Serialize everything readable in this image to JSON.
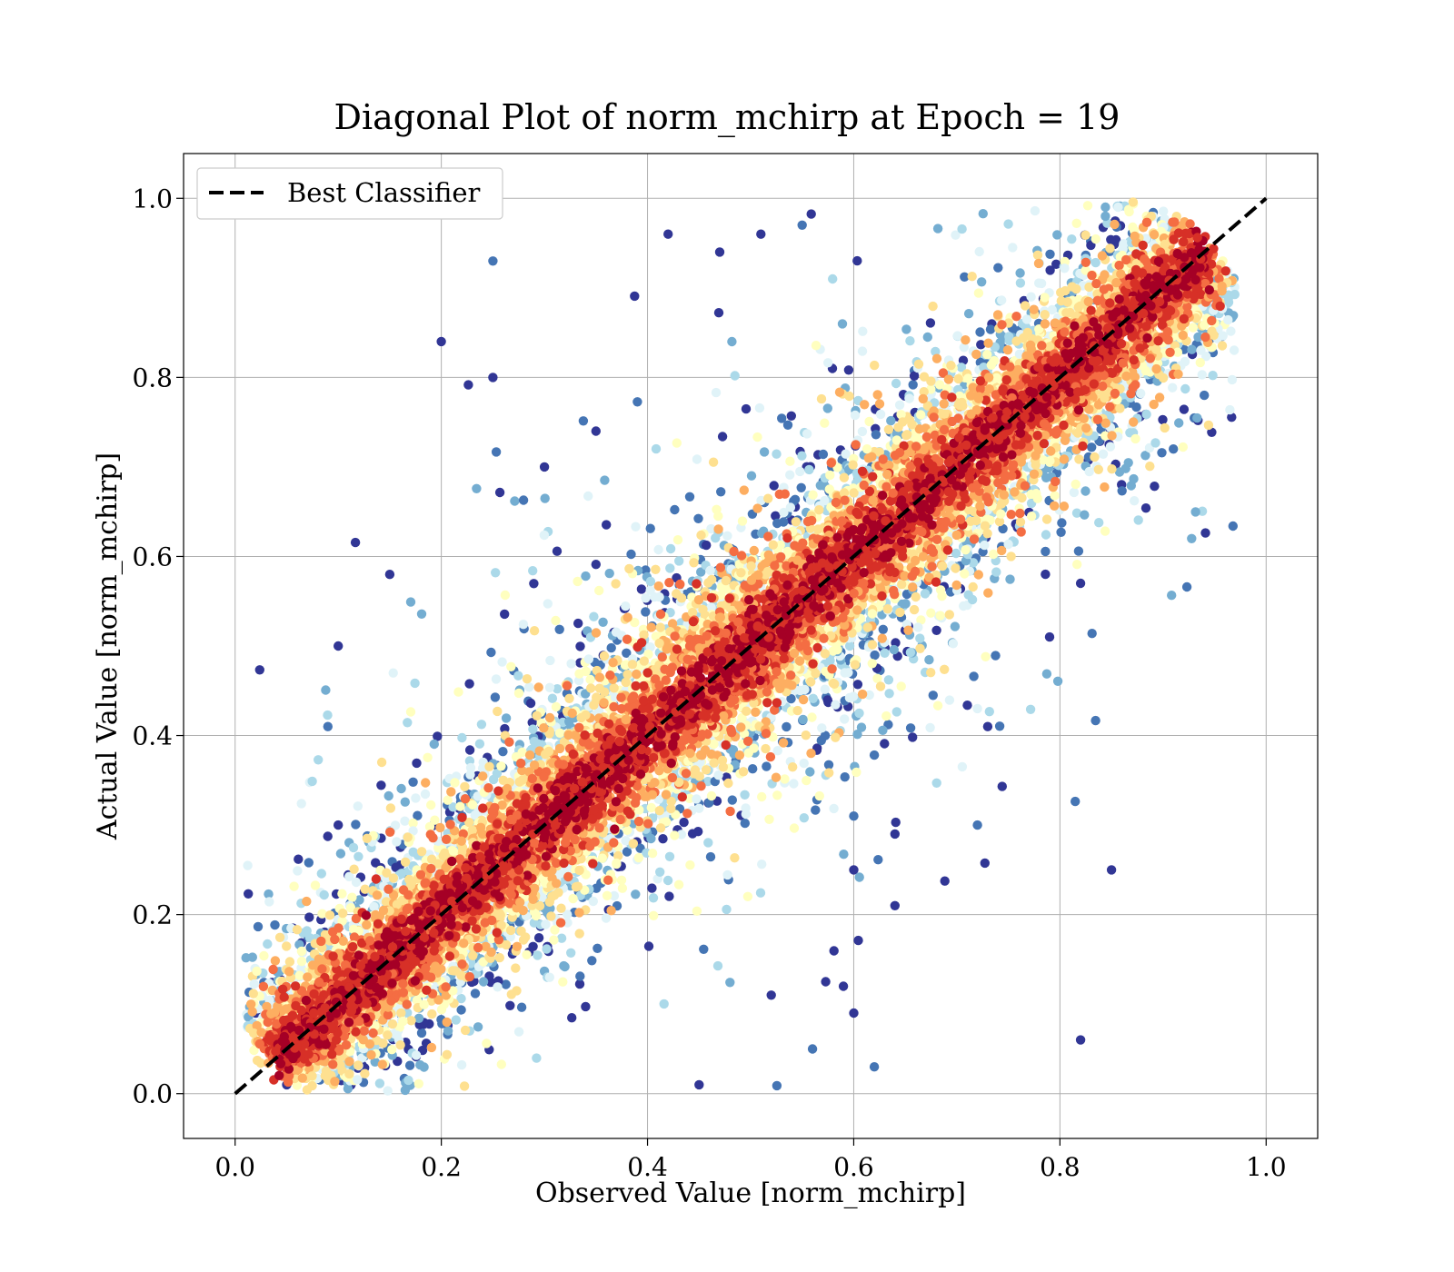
{
  "chart_data": {
    "type": "scatter",
    "title": "Diagonal Plot of norm_mchirp at Epoch = 19",
    "xlabel": "Observed Value [norm_mchirp]",
    "ylabel": "Actual Value [norm_mchirp]",
    "xlim": [
      -0.05,
      1.05
    ],
    "ylim": [
      -0.05,
      1.05
    ],
    "xticks": [
      "0.0",
      "0.2",
      "0.4",
      "0.6",
      "0.8",
      "1.0"
    ],
    "yticks": [
      "0.0",
      "0.2",
      "0.4",
      "0.6",
      "0.8",
      "1.0"
    ],
    "xtick_values": [
      0.0,
      0.2,
      0.4,
      0.6,
      0.8,
      1.0
    ],
    "ytick_values": [
      0.0,
      0.2,
      0.4,
      0.6,
      0.8,
      1.0
    ],
    "grid": true,
    "legend": {
      "placement": "top-left",
      "entries": [
        "Best Classifier"
      ]
    },
    "reference_line": {
      "name": "Best Classifier",
      "x": [
        0.0,
        1.0
      ],
      "y": [
        0.0,
        1.0
      ],
      "style": "dashed",
      "color": "#000000"
    },
    "colormap": "RdYlBu_r (density: dark blue = sparse, dark red = dense)",
    "colors": [
      "#313695",
      "#4575b4",
      "#74add1",
      "#abd9e9",
      "#e0f3f8",
      "#ffffbf",
      "#fee090",
      "#fdae61",
      "#f46d43",
      "#d73027",
      "#a50026"
    ],
    "points_approx_count": 12000,
    "points_sample": [
      {
        "x": 0.02,
        "y": 0.07
      },
      {
        "x": 0.02,
        "y": 0.09
      },
      {
        "x": 0.05,
        "y": 0.01
      },
      {
        "x": 0.1,
        "y": 0.5
      },
      {
        "x": 0.09,
        "y": 0.41
      },
      {
        "x": 0.1,
        "y": 0.3
      },
      {
        "x": 0.15,
        "y": 0.58
      },
      {
        "x": 0.2,
        "y": 0.84
      },
      {
        "x": 0.25,
        "y": 0.93
      },
      {
        "x": 0.25,
        "y": 0.8
      },
      {
        "x": 0.42,
        "y": 0.96
      },
      {
        "x": 0.47,
        "y": 0.94
      },
      {
        "x": 0.51,
        "y": 0.96
      },
      {
        "x": 0.55,
        "y": 0.97
      },
      {
        "x": 0.3,
        "y": 0.7
      },
      {
        "x": 0.35,
        "y": 0.74
      },
      {
        "x": 0.6,
        "y": 0.31
      },
      {
        "x": 0.6,
        "y": 0.25
      },
      {
        "x": 0.64,
        "y": 0.29
      },
      {
        "x": 0.64,
        "y": 0.21
      },
      {
        "x": 0.72,
        "y": 0.3
      },
      {
        "x": 0.73,
        "y": 0.41
      },
      {
        "x": 0.79,
        "y": 0.51
      },
      {
        "x": 0.82,
        "y": 0.06
      },
      {
        "x": 0.82,
        "y": 0.57
      },
      {
        "x": 0.85,
        "y": 0.25
      },
      {
        "x": 0.45,
        "y": 0.01
      },
      {
        "x": 0.62,
        "y": 0.03
      },
      {
        "x": 0.6,
        "y": 0.09
      },
      {
        "x": 0.56,
        "y": 0.05
      },
      {
        "x": 0.52,
        "y": 0.11
      },
      {
        "x": 0.59,
        "y": 0.12
      },
      {
        "x": 0.94,
        "y": 0.78
      },
      {
        "x": 0.95,
        "y": 0.9
      },
      {
        "x": 0.91,
        "y": 0.72
      },
      {
        "x": 0.16,
        "y": 0.21
      },
      {
        "x": 0.35,
        "y": 0.35
      },
      {
        "x": 0.4,
        "y": 0.35
      },
      {
        "x": 0.5,
        "y": 0.53
      },
      {
        "x": 0.82,
        "y": 0.79
      },
      {
        "x": 0.83,
        "y": 0.87
      },
      {
        "x": 0.88,
        "y": 0.82
      }
    ]
  }
}
